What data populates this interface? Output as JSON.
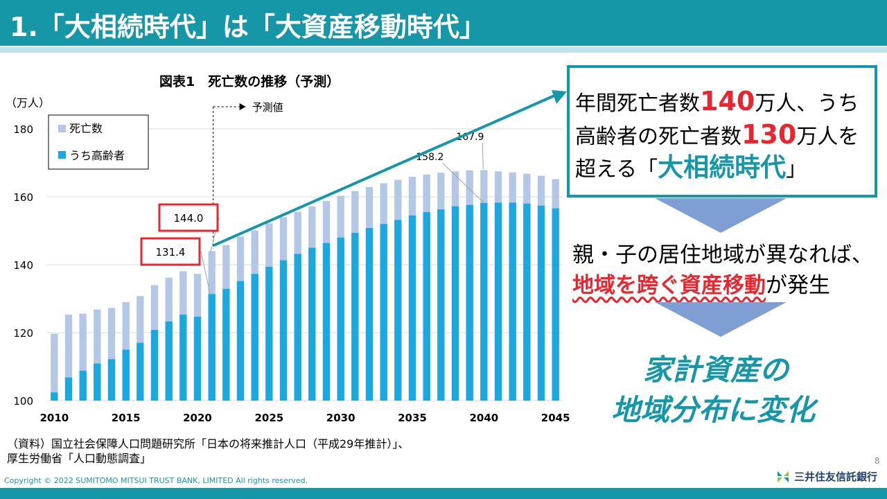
{
  "slide": {
    "title": "1.「大相続時代」は「大資産移動時代」",
    "page_number": "8",
    "copyright": "Copyright © 2022 SUMITOMO MITSUI TRUST BANK, LIMITED All rights reserved.",
    "logo_text": "三井住友信託銀行"
  },
  "chart_data": {
    "type": "bar",
    "title": "図表1　死亡数の推移（予測）",
    "y_unit_label": "（万人）",
    "ylim": [
      100,
      180
    ],
    "y_ticks": [
      "100",
      "120",
      "140",
      "160",
      "180"
    ],
    "x": [
      2010,
      2011,
      2012,
      2013,
      2014,
      2015,
      2016,
      2017,
      2018,
      2019,
      2020,
      2021,
      2022,
      2023,
      2024,
      2025,
      2026,
      2027,
      2028,
      2029,
      2030,
      2031,
      2032,
      2033,
      2034,
      2035,
      2036,
      2037,
      2038,
      2039,
      2040,
      2041,
      2042,
      2043,
      2044,
      2045
    ],
    "x_tick_labels": [
      "2010",
      "2015",
      "2020",
      "2025",
      "2030",
      "2035",
      "2040",
      "2045"
    ],
    "series": [
      {
        "name": "死亡数",
        "color": "#b4c7e7",
        "values": [
          119.7,
          125.3,
          125.6,
          126.8,
          127.3,
          129.0,
          130.8,
          134.0,
          136.2,
          138.1,
          137.3,
          144.0,
          145.8,
          148.3,
          150.1,
          152.2,
          154.0,
          155.6,
          157.2,
          158.8,
          160.3,
          161.7,
          162.9,
          164.0,
          165.0,
          165.9,
          166.6,
          167.1,
          167.5,
          167.8,
          167.9,
          167.5,
          167.2,
          166.8,
          166.2,
          165.2
        ]
      },
      {
        "name": "うち高齢者",
        "color": "#1ba8e0",
        "values": [
          102.4,
          106.8,
          108.8,
          110.9,
          112.2,
          115.0,
          117.0,
          120.8,
          123.3,
          125.3,
          124.7,
          131.4,
          132.9,
          135.2,
          137.3,
          139.4,
          141.3,
          143.2,
          145.0,
          146.4,
          148.0,
          149.4,
          150.8,
          152.0,
          153.2,
          154.5,
          155.5,
          156.3,
          157.2,
          157.6,
          158.2,
          158.3,
          158.3,
          158.0,
          157.4,
          156.6
        ]
      }
    ],
    "legend": [
      "死亡数",
      "うち高齢者"
    ],
    "legend_position": "top-left",
    "forecast_label": "予測値",
    "data_labels": [
      {
        "label": "167.9",
        "x": 2040,
        "series": "死亡数"
      },
      {
        "label": "158.2",
        "x": 2040,
        "series": "うち高齢者"
      },
      {
        "label": "144.0",
        "x": 2021,
        "series": "死亡数",
        "boxed": true
      },
      {
        "label": "131.4",
        "x": 2021,
        "series": "うち高齢者",
        "boxed": true
      }
    ]
  },
  "callout": {
    "line1_pre": "年間死亡者数",
    "line1_num": "140",
    "line1_post": "万人、うち",
    "line2_pre": "高齢者の死亡者数",
    "line2_num": "130",
    "line2_post": "万人を",
    "line3_pre": "超える「",
    "line3_em": "大相続時代",
    "line3_post": "」"
  },
  "middle": {
    "line1": "親・子の居住地域が異なれば、",
    "line2_em": "地域を跨ぐ資産移動",
    "line2_post": "が発生"
  },
  "result": {
    "line1": "家計資産の",
    "line2": "地域分布に変化"
  },
  "source": {
    "line1": "（資料）国立社会保障人口問題研究所「日本の将来推計人口（平成29年推計）」、",
    "line2": "厚生労働省「人口動態調査」"
  }
}
